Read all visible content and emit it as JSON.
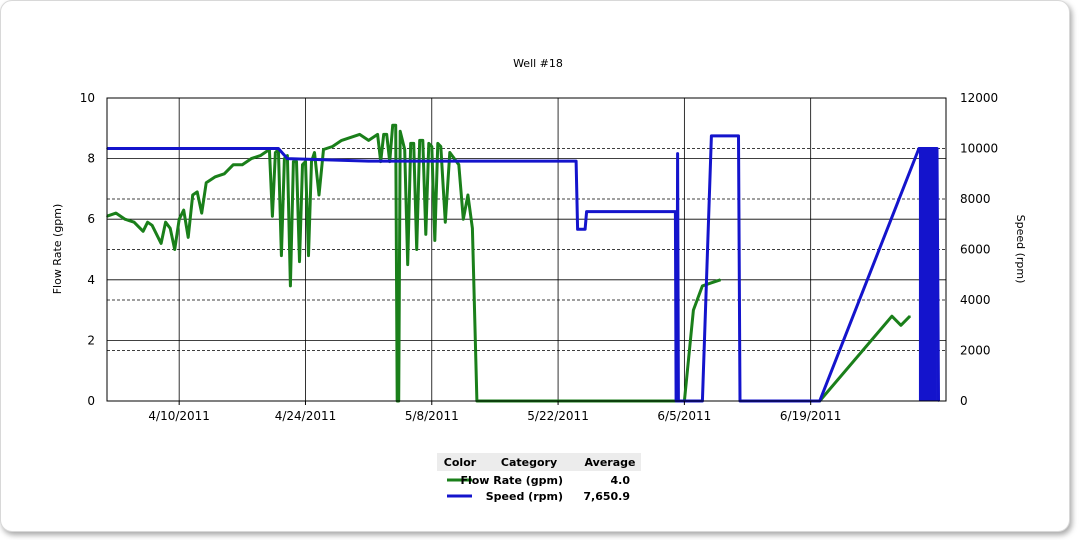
{
  "chart_data": {
    "type": "line",
    "title": "Well #18",
    "xlabel": "",
    "ylabel": "Flow Rate (gpm)",
    "y2label": "Speed (rpm)",
    "x_tick_labels": [
      "4/10/2011",
      "4/24/2011",
      "5/8/2011",
      "5/22/2011",
      "6/5/2011",
      "6/19/2011"
    ],
    "x_range": [
      "2011-04-02",
      "2011-07-04"
    ],
    "y_ticks": [
      0,
      2,
      4,
      6,
      8,
      10
    ],
    "y2_ticks": [
      0,
      2000,
      4000,
      6000,
      8000,
      10000,
      12000
    ],
    "ylim": [
      0,
      10
    ],
    "y2lim": [
      0,
      12000
    ],
    "grid": true,
    "series": [
      {
        "name": "Flow Rate (gpm)",
        "axis": "left",
        "color": "#1a7f1a",
        "points": [
          [
            "2011-04-02",
            6.1
          ],
          [
            "2011-04-03",
            6.2
          ],
          [
            "2011-04-04",
            6.0
          ],
          [
            "2011-04-05",
            5.9
          ],
          [
            "2011-04-06",
            5.6
          ],
          [
            "2011-04-06T12",
            5.9
          ],
          [
            "2011-04-07",
            5.8
          ],
          [
            "2011-04-08",
            5.2
          ],
          [
            "2011-04-08T12",
            5.9
          ],
          [
            "2011-04-09",
            5.7
          ],
          [
            "2011-04-09T12",
            5.0
          ],
          [
            "2011-04-10",
            6.0
          ],
          [
            "2011-04-10T12",
            6.3
          ],
          [
            "2011-04-11",
            5.4
          ],
          [
            "2011-04-11T12",
            6.8
          ],
          [
            "2011-04-12",
            6.9
          ],
          [
            "2011-04-12T12",
            6.2
          ],
          [
            "2011-04-13",
            7.2
          ],
          [
            "2011-04-14",
            7.4
          ],
          [
            "2011-04-15",
            7.5
          ],
          [
            "2011-04-16",
            7.8
          ],
          [
            "2011-04-17",
            7.8
          ],
          [
            "2011-04-18",
            8.0
          ],
          [
            "2011-04-19",
            8.1
          ],
          [
            "2011-04-20",
            8.3
          ],
          [
            "2011-04-20T08",
            6.1
          ],
          [
            "2011-04-20T16",
            8.2
          ],
          [
            "2011-04-21",
            8.3
          ],
          [
            "2011-04-21T08",
            4.8
          ],
          [
            "2011-04-21T16",
            8.0
          ],
          [
            "2011-04-22",
            8.1
          ],
          [
            "2011-04-22T08",
            3.8
          ],
          [
            "2011-04-22T16",
            7.9
          ],
          [
            "2011-04-23",
            7.9
          ],
          [
            "2011-04-23T08",
            4.6
          ],
          [
            "2011-04-23T16",
            7.8
          ],
          [
            "2011-04-24",
            7.9
          ],
          [
            "2011-04-24T08",
            4.8
          ],
          [
            "2011-04-24T16",
            7.9
          ],
          [
            "2011-04-25",
            8.2
          ],
          [
            "2011-04-25T12",
            6.8
          ],
          [
            "2011-04-26",
            8.3
          ],
          [
            "2011-04-27",
            8.4
          ],
          [
            "2011-04-28",
            8.6
          ],
          [
            "2011-04-29",
            8.7
          ],
          [
            "2011-04-30",
            8.8
          ],
          [
            "2011-05-01",
            8.6
          ],
          [
            "2011-05-02",
            8.8
          ],
          [
            "2011-05-02T08",
            7.9
          ],
          [
            "2011-05-02T16",
            8.8
          ],
          [
            "2011-05-03",
            8.8
          ],
          [
            "2011-05-03T08",
            7.9
          ],
          [
            "2011-05-03T16",
            9.1
          ],
          [
            "2011-05-04",
            9.1
          ],
          [
            "2011-05-04T04",
            0.0
          ],
          [
            "2011-05-04T08",
            0.0
          ],
          [
            "2011-05-04T12",
            8.9
          ],
          [
            "2011-05-05",
            8.3
          ],
          [
            "2011-05-05T08",
            4.5
          ],
          [
            "2011-05-05T16",
            8.5
          ],
          [
            "2011-05-06",
            8.5
          ],
          [
            "2011-05-06T08",
            5.0
          ],
          [
            "2011-05-06T16",
            8.6
          ],
          [
            "2011-05-07",
            8.6
          ],
          [
            "2011-05-07T08",
            5.5
          ],
          [
            "2011-05-07T16",
            8.5
          ],
          [
            "2011-05-08",
            8.4
          ],
          [
            "2011-05-08T08",
            5.3
          ],
          [
            "2011-05-08T16",
            8.5
          ],
          [
            "2011-05-09",
            8.4
          ],
          [
            "2011-05-09T12",
            5.9
          ],
          [
            "2011-05-10",
            8.2
          ],
          [
            "2011-05-11",
            7.8
          ],
          [
            "2011-05-11T12",
            6.0
          ],
          [
            "2011-05-12",
            6.8
          ],
          [
            "2011-05-12T12",
            5.7
          ],
          [
            "2011-05-13",
            0.0
          ],
          [
            "2011-06-04",
            0.0
          ],
          [
            "2011-06-05",
            0.0
          ],
          [
            "2011-06-06",
            3.0
          ],
          [
            "2011-06-07",
            3.8
          ],
          [
            "2011-06-08",
            3.9
          ],
          [
            "2011-06-09",
            4.0
          ],
          [
            "2011-06-09T12",
            null
          ],
          [
            "2011-06-18",
            0.0
          ],
          [
            "2011-06-20",
            0.0
          ],
          [
            "2011-06-28",
            2.8
          ],
          [
            "2011-06-29",
            2.5
          ],
          [
            "2011-06-30",
            2.8
          ]
        ]
      },
      {
        "name": "Speed (rpm)",
        "axis": "right",
        "color": "#1414cc",
        "points": [
          [
            "2011-04-02",
            10000
          ],
          [
            "2011-04-21",
            10000
          ],
          [
            "2011-04-22",
            9600
          ],
          [
            "2011-05-01",
            9500
          ],
          [
            "2011-05-15",
            9500
          ],
          [
            "2011-05-22",
            9500
          ],
          [
            "2011-05-24",
            9500
          ],
          [
            "2011-05-24T04",
            6800
          ],
          [
            "2011-05-25",
            6800
          ],
          [
            "2011-05-25T04",
            7500
          ],
          [
            "2011-06-02",
            7500
          ],
          [
            "2011-06-04",
            7500
          ],
          [
            "2011-06-04T02",
            0
          ],
          [
            "2011-06-04T04",
            0
          ],
          [
            "2011-06-04T06",
            9800
          ],
          [
            "2011-06-04T08",
            0
          ],
          [
            "2011-06-07",
            0
          ],
          [
            "2011-06-08",
            10500
          ],
          [
            "2011-06-11",
            10500
          ],
          [
            "2011-06-11T04",
            0
          ],
          [
            "2011-06-20",
            0
          ],
          [
            "2011-07-01",
            10000
          ],
          [
            "2011-07-03",
            10000
          ],
          [
            "2011-07-03T04",
            0
          ]
        ],
        "dense_band": {
          "from": "2011-07-01",
          "to": "2011-07-03",
          "min": 0,
          "max": 10000
        }
      }
    ],
    "legend": {
      "placement": "bottom-center",
      "headers": [
        "Color",
        "Category",
        "Average"
      ],
      "rows": [
        {
          "category": "Flow Rate (gpm)",
          "average": "4.0",
          "color": "#1a7f1a"
        },
        {
          "category": "Speed (rpm)",
          "average": "7,650.9",
          "color": "#1414cc"
        }
      ]
    }
  }
}
